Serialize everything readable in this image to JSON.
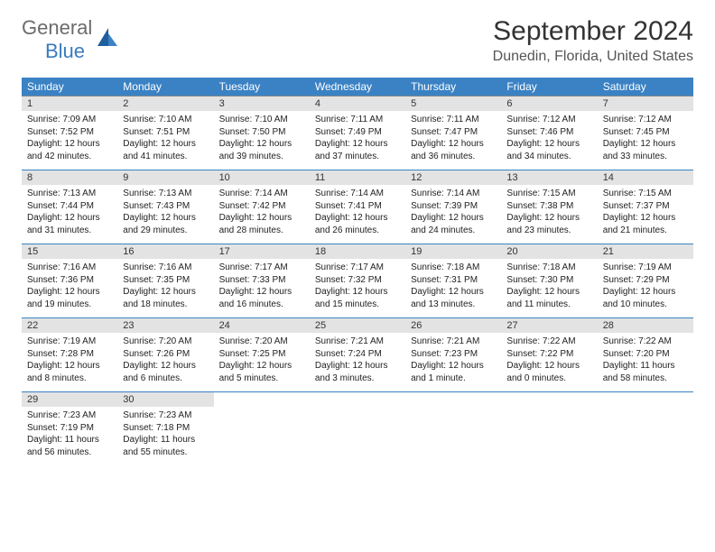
{
  "brand": {
    "general": "General",
    "blue": "Blue"
  },
  "colors": {
    "header_bg": "#3a82c4",
    "header_fg": "#ffffff",
    "daynum_bg": "#e3e3e3",
    "row_border": "#3a82c4",
    "logo_gray": "#6b6b6b",
    "logo_blue": "#3a7bbf"
  },
  "title": "September 2024",
  "location": "Dunedin, Florida, United States",
  "day_names": [
    "Sunday",
    "Monday",
    "Tuesday",
    "Wednesday",
    "Thursday",
    "Friday",
    "Saturday"
  ],
  "weeks": [
    {
      "nums": [
        "1",
        "2",
        "3",
        "4",
        "5",
        "6",
        "7"
      ],
      "cells": [
        {
          "sunrise": "Sunrise: 7:09 AM",
          "sunset": "Sunset: 7:52 PM",
          "day1": "Daylight: 12 hours",
          "day2": "and 42 minutes."
        },
        {
          "sunrise": "Sunrise: 7:10 AM",
          "sunset": "Sunset: 7:51 PM",
          "day1": "Daylight: 12 hours",
          "day2": "and 41 minutes."
        },
        {
          "sunrise": "Sunrise: 7:10 AM",
          "sunset": "Sunset: 7:50 PM",
          "day1": "Daylight: 12 hours",
          "day2": "and 39 minutes."
        },
        {
          "sunrise": "Sunrise: 7:11 AM",
          "sunset": "Sunset: 7:49 PM",
          "day1": "Daylight: 12 hours",
          "day2": "and 37 minutes."
        },
        {
          "sunrise": "Sunrise: 7:11 AM",
          "sunset": "Sunset: 7:47 PM",
          "day1": "Daylight: 12 hours",
          "day2": "and 36 minutes."
        },
        {
          "sunrise": "Sunrise: 7:12 AM",
          "sunset": "Sunset: 7:46 PM",
          "day1": "Daylight: 12 hours",
          "day2": "and 34 minutes."
        },
        {
          "sunrise": "Sunrise: 7:12 AM",
          "sunset": "Sunset: 7:45 PM",
          "day1": "Daylight: 12 hours",
          "day2": "and 33 minutes."
        }
      ]
    },
    {
      "nums": [
        "8",
        "9",
        "10",
        "11",
        "12",
        "13",
        "14"
      ],
      "cells": [
        {
          "sunrise": "Sunrise: 7:13 AM",
          "sunset": "Sunset: 7:44 PM",
          "day1": "Daylight: 12 hours",
          "day2": "and 31 minutes."
        },
        {
          "sunrise": "Sunrise: 7:13 AM",
          "sunset": "Sunset: 7:43 PM",
          "day1": "Daylight: 12 hours",
          "day2": "and 29 minutes."
        },
        {
          "sunrise": "Sunrise: 7:14 AM",
          "sunset": "Sunset: 7:42 PM",
          "day1": "Daylight: 12 hours",
          "day2": "and 28 minutes."
        },
        {
          "sunrise": "Sunrise: 7:14 AM",
          "sunset": "Sunset: 7:41 PM",
          "day1": "Daylight: 12 hours",
          "day2": "and 26 minutes."
        },
        {
          "sunrise": "Sunrise: 7:14 AM",
          "sunset": "Sunset: 7:39 PM",
          "day1": "Daylight: 12 hours",
          "day2": "and 24 minutes."
        },
        {
          "sunrise": "Sunrise: 7:15 AM",
          "sunset": "Sunset: 7:38 PM",
          "day1": "Daylight: 12 hours",
          "day2": "and 23 minutes."
        },
        {
          "sunrise": "Sunrise: 7:15 AM",
          "sunset": "Sunset: 7:37 PM",
          "day1": "Daylight: 12 hours",
          "day2": "and 21 minutes."
        }
      ]
    },
    {
      "nums": [
        "15",
        "16",
        "17",
        "18",
        "19",
        "20",
        "21"
      ],
      "cells": [
        {
          "sunrise": "Sunrise: 7:16 AM",
          "sunset": "Sunset: 7:36 PM",
          "day1": "Daylight: 12 hours",
          "day2": "and 19 minutes."
        },
        {
          "sunrise": "Sunrise: 7:16 AM",
          "sunset": "Sunset: 7:35 PM",
          "day1": "Daylight: 12 hours",
          "day2": "and 18 minutes."
        },
        {
          "sunrise": "Sunrise: 7:17 AM",
          "sunset": "Sunset: 7:33 PM",
          "day1": "Daylight: 12 hours",
          "day2": "and 16 minutes."
        },
        {
          "sunrise": "Sunrise: 7:17 AM",
          "sunset": "Sunset: 7:32 PM",
          "day1": "Daylight: 12 hours",
          "day2": "and 15 minutes."
        },
        {
          "sunrise": "Sunrise: 7:18 AM",
          "sunset": "Sunset: 7:31 PM",
          "day1": "Daylight: 12 hours",
          "day2": "and 13 minutes."
        },
        {
          "sunrise": "Sunrise: 7:18 AM",
          "sunset": "Sunset: 7:30 PM",
          "day1": "Daylight: 12 hours",
          "day2": "and 11 minutes."
        },
        {
          "sunrise": "Sunrise: 7:19 AM",
          "sunset": "Sunset: 7:29 PM",
          "day1": "Daylight: 12 hours",
          "day2": "and 10 minutes."
        }
      ]
    },
    {
      "nums": [
        "22",
        "23",
        "24",
        "25",
        "26",
        "27",
        "28"
      ],
      "cells": [
        {
          "sunrise": "Sunrise: 7:19 AM",
          "sunset": "Sunset: 7:28 PM",
          "day1": "Daylight: 12 hours",
          "day2": "and 8 minutes."
        },
        {
          "sunrise": "Sunrise: 7:20 AM",
          "sunset": "Sunset: 7:26 PM",
          "day1": "Daylight: 12 hours",
          "day2": "and 6 minutes."
        },
        {
          "sunrise": "Sunrise: 7:20 AM",
          "sunset": "Sunset: 7:25 PM",
          "day1": "Daylight: 12 hours",
          "day2": "and 5 minutes."
        },
        {
          "sunrise": "Sunrise: 7:21 AM",
          "sunset": "Sunset: 7:24 PM",
          "day1": "Daylight: 12 hours",
          "day2": "and 3 minutes."
        },
        {
          "sunrise": "Sunrise: 7:21 AM",
          "sunset": "Sunset: 7:23 PM",
          "day1": "Daylight: 12 hours",
          "day2": "and 1 minute."
        },
        {
          "sunrise": "Sunrise: 7:22 AM",
          "sunset": "Sunset: 7:22 PM",
          "day1": "Daylight: 12 hours",
          "day2": "and 0 minutes."
        },
        {
          "sunrise": "Sunrise: 7:22 AM",
          "sunset": "Sunset: 7:20 PM",
          "day1": "Daylight: 11 hours",
          "day2": "and 58 minutes."
        }
      ]
    },
    {
      "nums": [
        "29",
        "30",
        "",
        "",
        "",
        "",
        ""
      ],
      "cells": [
        {
          "sunrise": "Sunrise: 7:23 AM",
          "sunset": "Sunset: 7:19 PM",
          "day1": "Daylight: 11 hours",
          "day2": "and 56 minutes."
        },
        {
          "sunrise": "Sunrise: 7:23 AM",
          "sunset": "Sunset: 7:18 PM",
          "day1": "Daylight: 11 hours",
          "day2": "and 55 minutes."
        },
        null,
        null,
        null,
        null,
        null
      ]
    }
  ]
}
